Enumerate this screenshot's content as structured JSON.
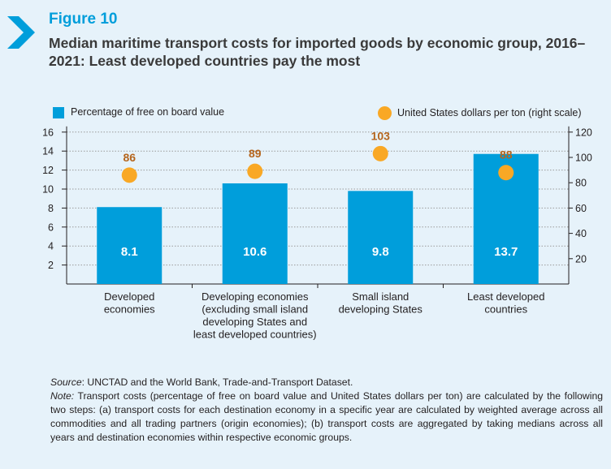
{
  "figure": {
    "label": "Figure 10",
    "title": "Median maritime transport costs for imported goods by economic group, 2016–2021: Least developed countries pay the most"
  },
  "legend": {
    "bar_label": "Percentage of free on board value",
    "dot_label": "United States dollars per ton (right scale)"
  },
  "chart_data": {
    "type": "bar",
    "categories": [
      [
        "Developed",
        "economies"
      ],
      [
        "Developing economies",
        "(excluding small island",
        "developing States and",
        "least developed countries)"
      ],
      [
        "Small island",
        "developing States"
      ],
      [
        "Least developed",
        "countries"
      ]
    ],
    "series": [
      {
        "name": "Percentage of free on board value",
        "type": "bar",
        "axis": "left",
        "values": [
          8.1,
          10.6,
          9.8,
          13.7
        ],
        "color": "#009edb"
      },
      {
        "name": "United States dollars per ton (right scale)",
        "type": "scatter",
        "axis": "right",
        "values": [
          86,
          89,
          103,
          88
        ],
        "color": "#f9a825",
        "label_color": "#b5651d"
      }
    ],
    "y_left": {
      "ticks": [
        2,
        4,
        6,
        8,
        10,
        12,
        14,
        16
      ],
      "range": [
        0,
        16
      ]
    },
    "y_right": {
      "ticks": [
        20,
        40,
        60,
        80,
        100,
        120
      ],
      "range": [
        0,
        120
      ]
    },
    "grid": "dotted horizontal"
  },
  "footer": {
    "source_label": "Source",
    "source_text": ": UNCTAD and the World Bank, Trade-and-Transport Dataset.",
    "note_label": "Note:",
    "note_text": " Transport costs (percentage of free on board value and United States dollars per ton) are calculated by the following two steps: (a) transport costs for each destination economy in a specific year are calculated by weighted average across all commodities and all trading partners (origin economies); (b) transport costs are aggregated by taking medians across all years and destination economies within respective economic groups."
  }
}
